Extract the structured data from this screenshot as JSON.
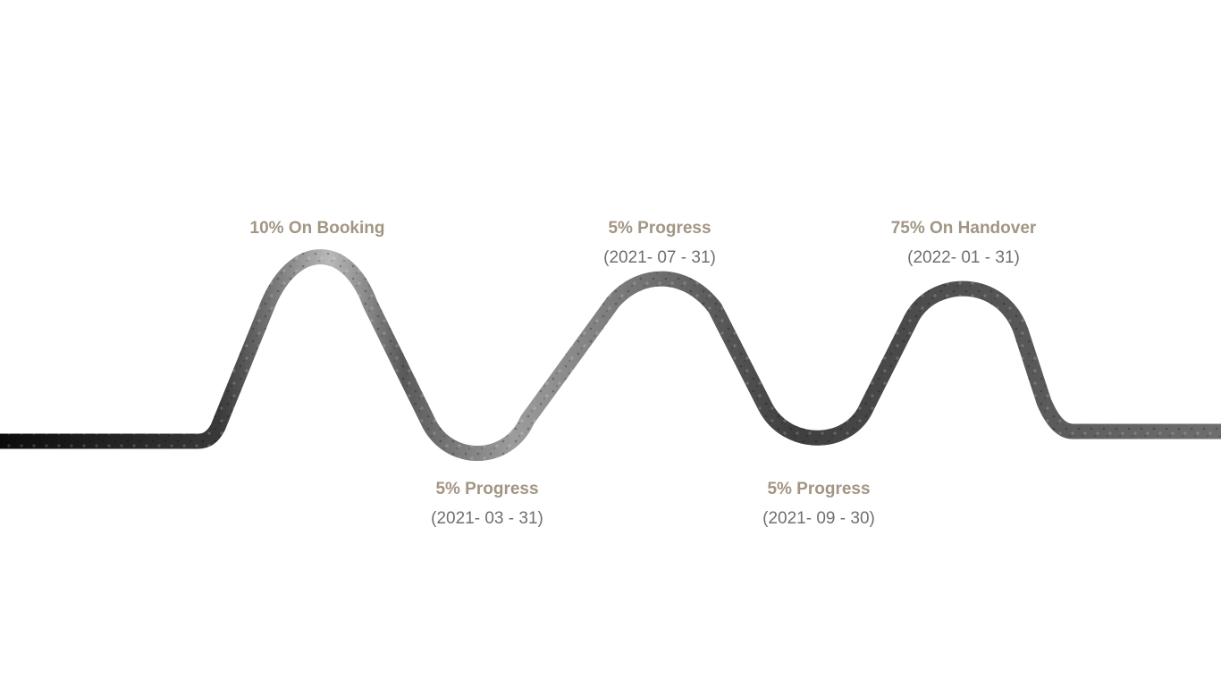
{
  "milestones": [
    {
      "label": "10% On Booking",
      "date": ""
    },
    {
      "label": "5% Progress",
      "date": "(2021- 03 - 31)"
    },
    {
      "label": "5% Progress",
      "date": "(2021- 07 - 31)"
    },
    {
      "label": "5% Progress",
      "date": "(2021- 09 - 30)"
    },
    {
      "label": "75% On Handover",
      "date": "(2022- 01 - 31)"
    }
  ],
  "colors": {
    "label": "#a29583",
    "date": "#6f6f6f",
    "line_dark": "#111111",
    "line_light": "#bdbdbd"
  }
}
